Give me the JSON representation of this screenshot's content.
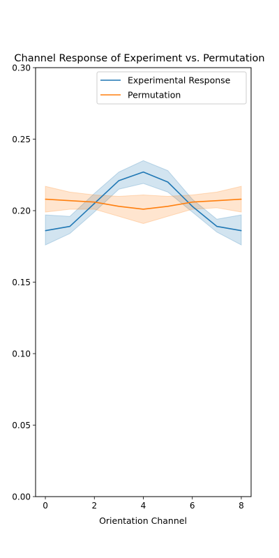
{
  "chart_data": {
    "type": "line",
    "title": "Channel Response of Experiment vs. Permutation",
    "xlabel": "Orientation Channel",
    "ylabel": "",
    "xlim": [
      -0.4,
      8.4
    ],
    "ylim": [
      0.0,
      0.3
    ],
    "xticks": [
      0,
      2,
      4,
      6,
      8
    ],
    "yticks": [
      0.0,
      0.05,
      0.1,
      0.15,
      0.2,
      0.25,
      0.3
    ],
    "xtick_labels": [
      "0",
      "2",
      "4",
      "6",
      "8"
    ],
    "ytick_labels": [
      "0.00",
      "0.05",
      "0.10",
      "0.15",
      "0.20",
      "0.25",
      "0.30"
    ],
    "grid": false,
    "legend_position": "top-right",
    "x": [
      0,
      1,
      2,
      3,
      4,
      5,
      6,
      7,
      8
    ],
    "series": [
      {
        "name": "Experimental Response",
        "color": "#1f77b4",
        "values": [
          0.186,
          0.189,
          0.205,
          0.221,
          0.227,
          0.22,
          0.203,
          0.189,
          0.186
        ],
        "ci_lower": [
          0.176,
          0.184,
          0.199,
          0.215,
          0.219,
          0.213,
          0.199,
          0.185,
          0.176
        ],
        "ci_upper": [
          0.197,
          0.196,
          0.212,
          0.227,
          0.235,
          0.228,
          0.208,
          0.194,
          0.197
        ]
      },
      {
        "name": "Permutation",
        "color": "#ff7f0e",
        "values": [
          0.208,
          0.207,
          0.206,
          0.203,
          0.201,
          0.203,
          0.206,
          0.207,
          0.208
        ],
        "ci_lower": [
          0.199,
          0.201,
          0.201,
          0.196,
          0.191,
          0.196,
          0.201,
          0.202,
          0.199
        ],
        "ci_upper": [
          0.217,
          0.213,
          0.211,
          0.21,
          0.211,
          0.21,
          0.211,
          0.213,
          0.217
        ]
      }
    ]
  }
}
